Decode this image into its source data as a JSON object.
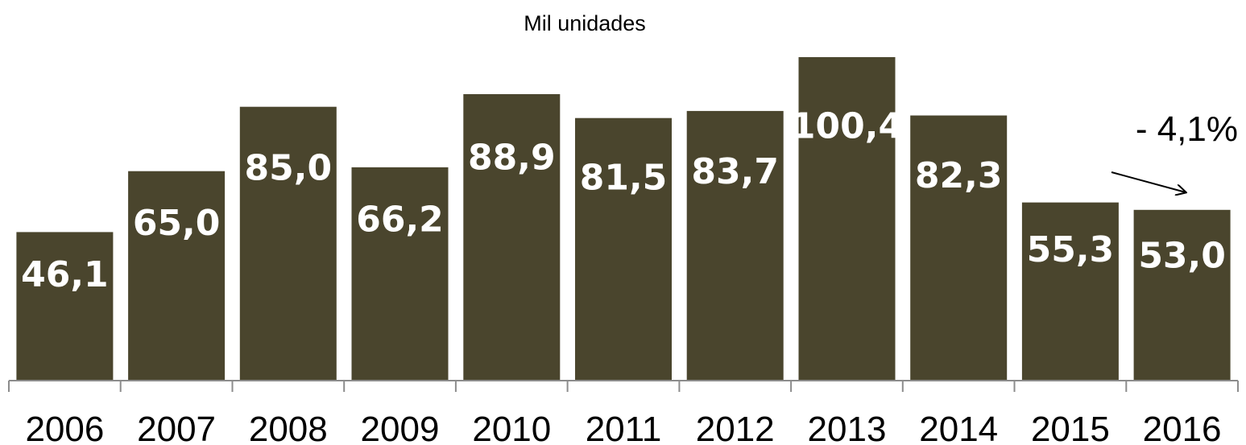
{
  "chart_data": {
    "type": "bar",
    "title": "Mil unidades",
    "categories": [
      "2006",
      "2007",
      "2008",
      "2009",
      "2010",
      "2011",
      "2012",
      "2013",
      "2014",
      "2015",
      "2016"
    ],
    "values": [
      46.1,
      65.0,
      85.0,
      66.2,
      88.9,
      81.5,
      83.7,
      100.4,
      82.3,
      55.3,
      53.0
    ],
    "data_labels": [
      "46,1",
      "65,0",
      "85,0",
      "66,2",
      "88,9",
      "81,5",
      "83,7",
      "100,4",
      "82,3",
      "55,3",
      "53,0"
    ],
    "ylim": [
      0,
      100.4
    ],
    "grid": false,
    "legend": "none",
    "bar_color": "#4a452d",
    "annotation": {
      "text": "- 4,1%",
      "arrow_from": "2015",
      "arrow_to": "2016"
    }
  }
}
